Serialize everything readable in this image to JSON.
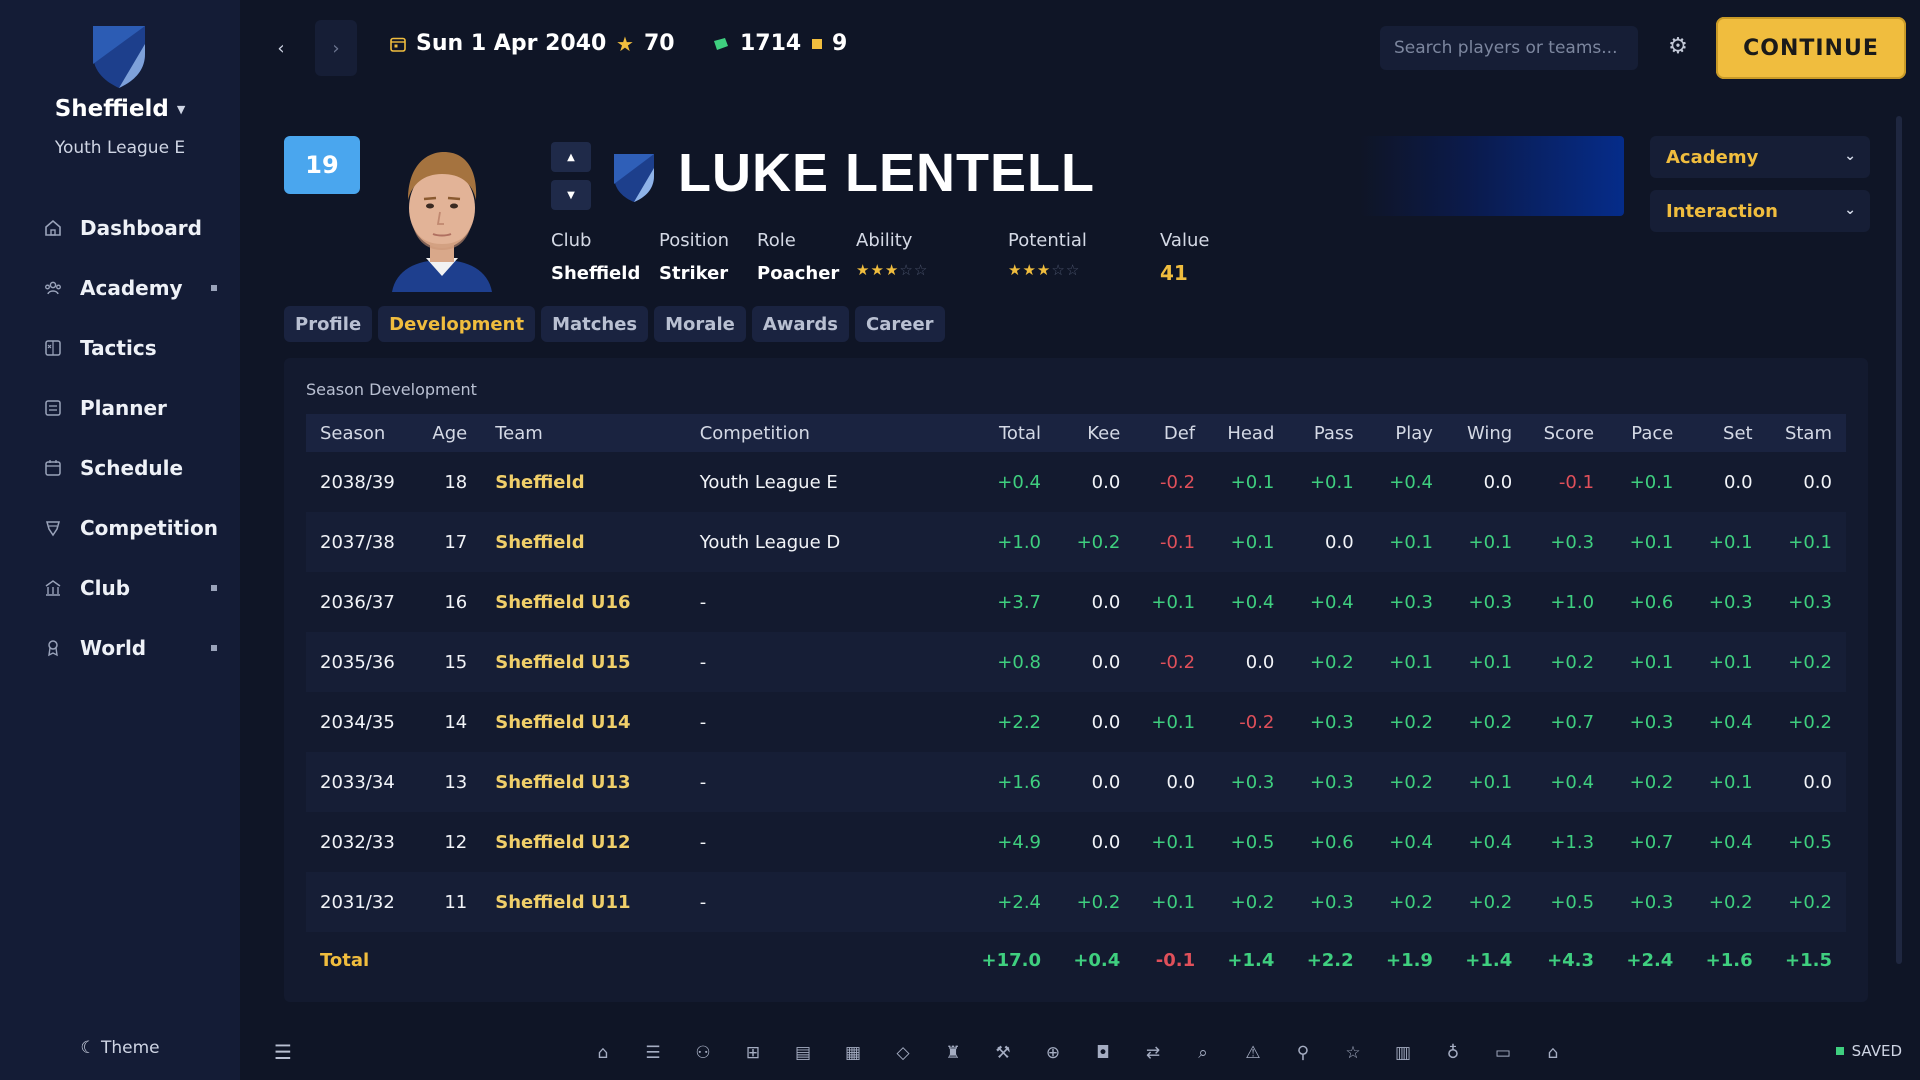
{
  "sidebar": {
    "club_name": "Sheffield",
    "league": "Youth League E",
    "items": [
      {
        "label": "Dashboard",
        "icon": "home-icon",
        "dot": false
      },
      {
        "label": "Academy",
        "icon": "people-icon",
        "dot": true
      },
      {
        "label": "Tactics",
        "icon": "tactics-board-icon",
        "dot": false
      },
      {
        "label": "Planner",
        "icon": "planner-icon",
        "dot": false
      },
      {
        "label": "Schedule",
        "icon": "calendar-icon",
        "dot": false
      },
      {
        "label": "Competition",
        "icon": "trophy-icon",
        "dot": false
      },
      {
        "label": "Club",
        "icon": "building-icon",
        "dot": true
      },
      {
        "label": "World",
        "icon": "award-icon",
        "dot": true
      }
    ],
    "theme_label": "Theme"
  },
  "topbar": {
    "date": "Sun 1 Apr 2040",
    "stars": "70",
    "money": "1714",
    "tokens": "9",
    "search_placeholder": "Search players or teams...",
    "continue_label": "CONTINUE"
  },
  "player": {
    "number": "19",
    "name": "LUKE LENTELL",
    "club_label": "Club",
    "club": "Sheffield",
    "position_label": "Position",
    "position": "Striker",
    "role_label": "Role",
    "role": "Poacher",
    "ability_label": "Ability",
    "ability_stars": 3,
    "potential_label": "Potential",
    "potential_stars": 3,
    "star_max": 5,
    "value_label": "Value",
    "value": "41"
  },
  "dropdowns": {
    "academy": "Academy",
    "interaction": "Interaction"
  },
  "tabs": [
    "Profile",
    "Development",
    "Matches",
    "Morale",
    "Awards",
    "Career"
  ],
  "active_tab": "Development",
  "development": {
    "title": "Season Development",
    "columns": [
      "Season",
      "Age",
      "Team",
      "Competition",
      "Total",
      "Kee",
      "Def",
      "Head",
      "Pass",
      "Play",
      "Wing",
      "Score",
      "Pace",
      "Set",
      "Stam"
    ],
    "rows": [
      [
        "2038/39",
        "18",
        "Sheffield",
        "Youth League E",
        "+0.4",
        "0.0",
        "-0.2",
        "+0.1",
        "+0.1",
        "+0.4",
        "0.0",
        "-0.1",
        "+0.1",
        "0.0",
        "0.0"
      ],
      [
        "2037/38",
        "17",
        "Sheffield",
        "Youth League D",
        "+1.0",
        "+0.2",
        "-0.1",
        "+0.1",
        "0.0",
        "+0.1",
        "+0.1",
        "+0.3",
        "+0.1",
        "+0.1",
        "+0.1"
      ],
      [
        "2036/37",
        "16",
        "Sheffield U16",
        "-",
        "+3.7",
        "0.0",
        "+0.1",
        "+0.4",
        "+0.4",
        "+0.3",
        "+0.3",
        "+1.0",
        "+0.6",
        "+0.3",
        "+0.3"
      ],
      [
        "2035/36",
        "15",
        "Sheffield U15",
        "-",
        "+0.8",
        "0.0",
        "-0.2",
        "0.0",
        "+0.2",
        "+0.1",
        "+0.1",
        "+0.2",
        "+0.1",
        "+0.1",
        "+0.2"
      ],
      [
        "2034/35",
        "14",
        "Sheffield U14",
        "-",
        "+2.2",
        "0.0",
        "+0.1",
        "-0.2",
        "+0.3",
        "+0.2",
        "+0.2",
        "+0.7",
        "+0.3",
        "+0.4",
        "+0.2"
      ],
      [
        "2033/34",
        "13",
        "Sheffield U13",
        "-",
        "+1.6",
        "0.0",
        "0.0",
        "+0.3",
        "+0.3",
        "+0.2",
        "+0.1",
        "+0.4",
        "+0.2",
        "+0.1",
        "0.0"
      ],
      [
        "2032/33",
        "12",
        "Sheffield U12",
        "-",
        "+4.9",
        "0.0",
        "+0.1",
        "+0.5",
        "+0.6",
        "+0.4",
        "+0.4",
        "+1.3",
        "+0.7",
        "+0.4",
        "+0.5"
      ],
      [
        "2031/32",
        "11",
        "Sheffield U11",
        "-",
        "+2.4",
        "+0.2",
        "+0.1",
        "+0.2",
        "+0.3",
        "+0.2",
        "+0.2",
        "+0.5",
        "+0.3",
        "+0.2",
        "+0.2"
      ]
    ],
    "total_label": "Total",
    "totals": [
      "+17.0",
      "+0.4",
      "-0.1",
      "+1.4",
      "+2.2",
      "+1.9",
      "+1.4",
      "+4.3",
      "+2.4",
      "+1.6",
      "+1.5"
    ]
  },
  "bottombar": {
    "icons": [
      "home-icon",
      "news-icon",
      "people-icon",
      "tactics-board-icon",
      "planner-icon",
      "calendar-icon",
      "trophy-icon",
      "trophy-cup-icon",
      "tools-icon",
      "medical-icon",
      "camera-icon",
      "transfer-icon",
      "scout-search-icon",
      "warning-icon",
      "network-icon",
      "star-icon",
      "stats-chart-icon",
      "award-icon",
      "folder-icon",
      "building-icon"
    ],
    "saved_label": "SAVED"
  },
  "colors": {
    "accent": "#f0bd3e",
    "positive": "#3fcf7f",
    "negative": "#e0505a",
    "badge": "#4aa6ee",
    "background": "#0f1526",
    "sidebar": "#141c36"
  }
}
